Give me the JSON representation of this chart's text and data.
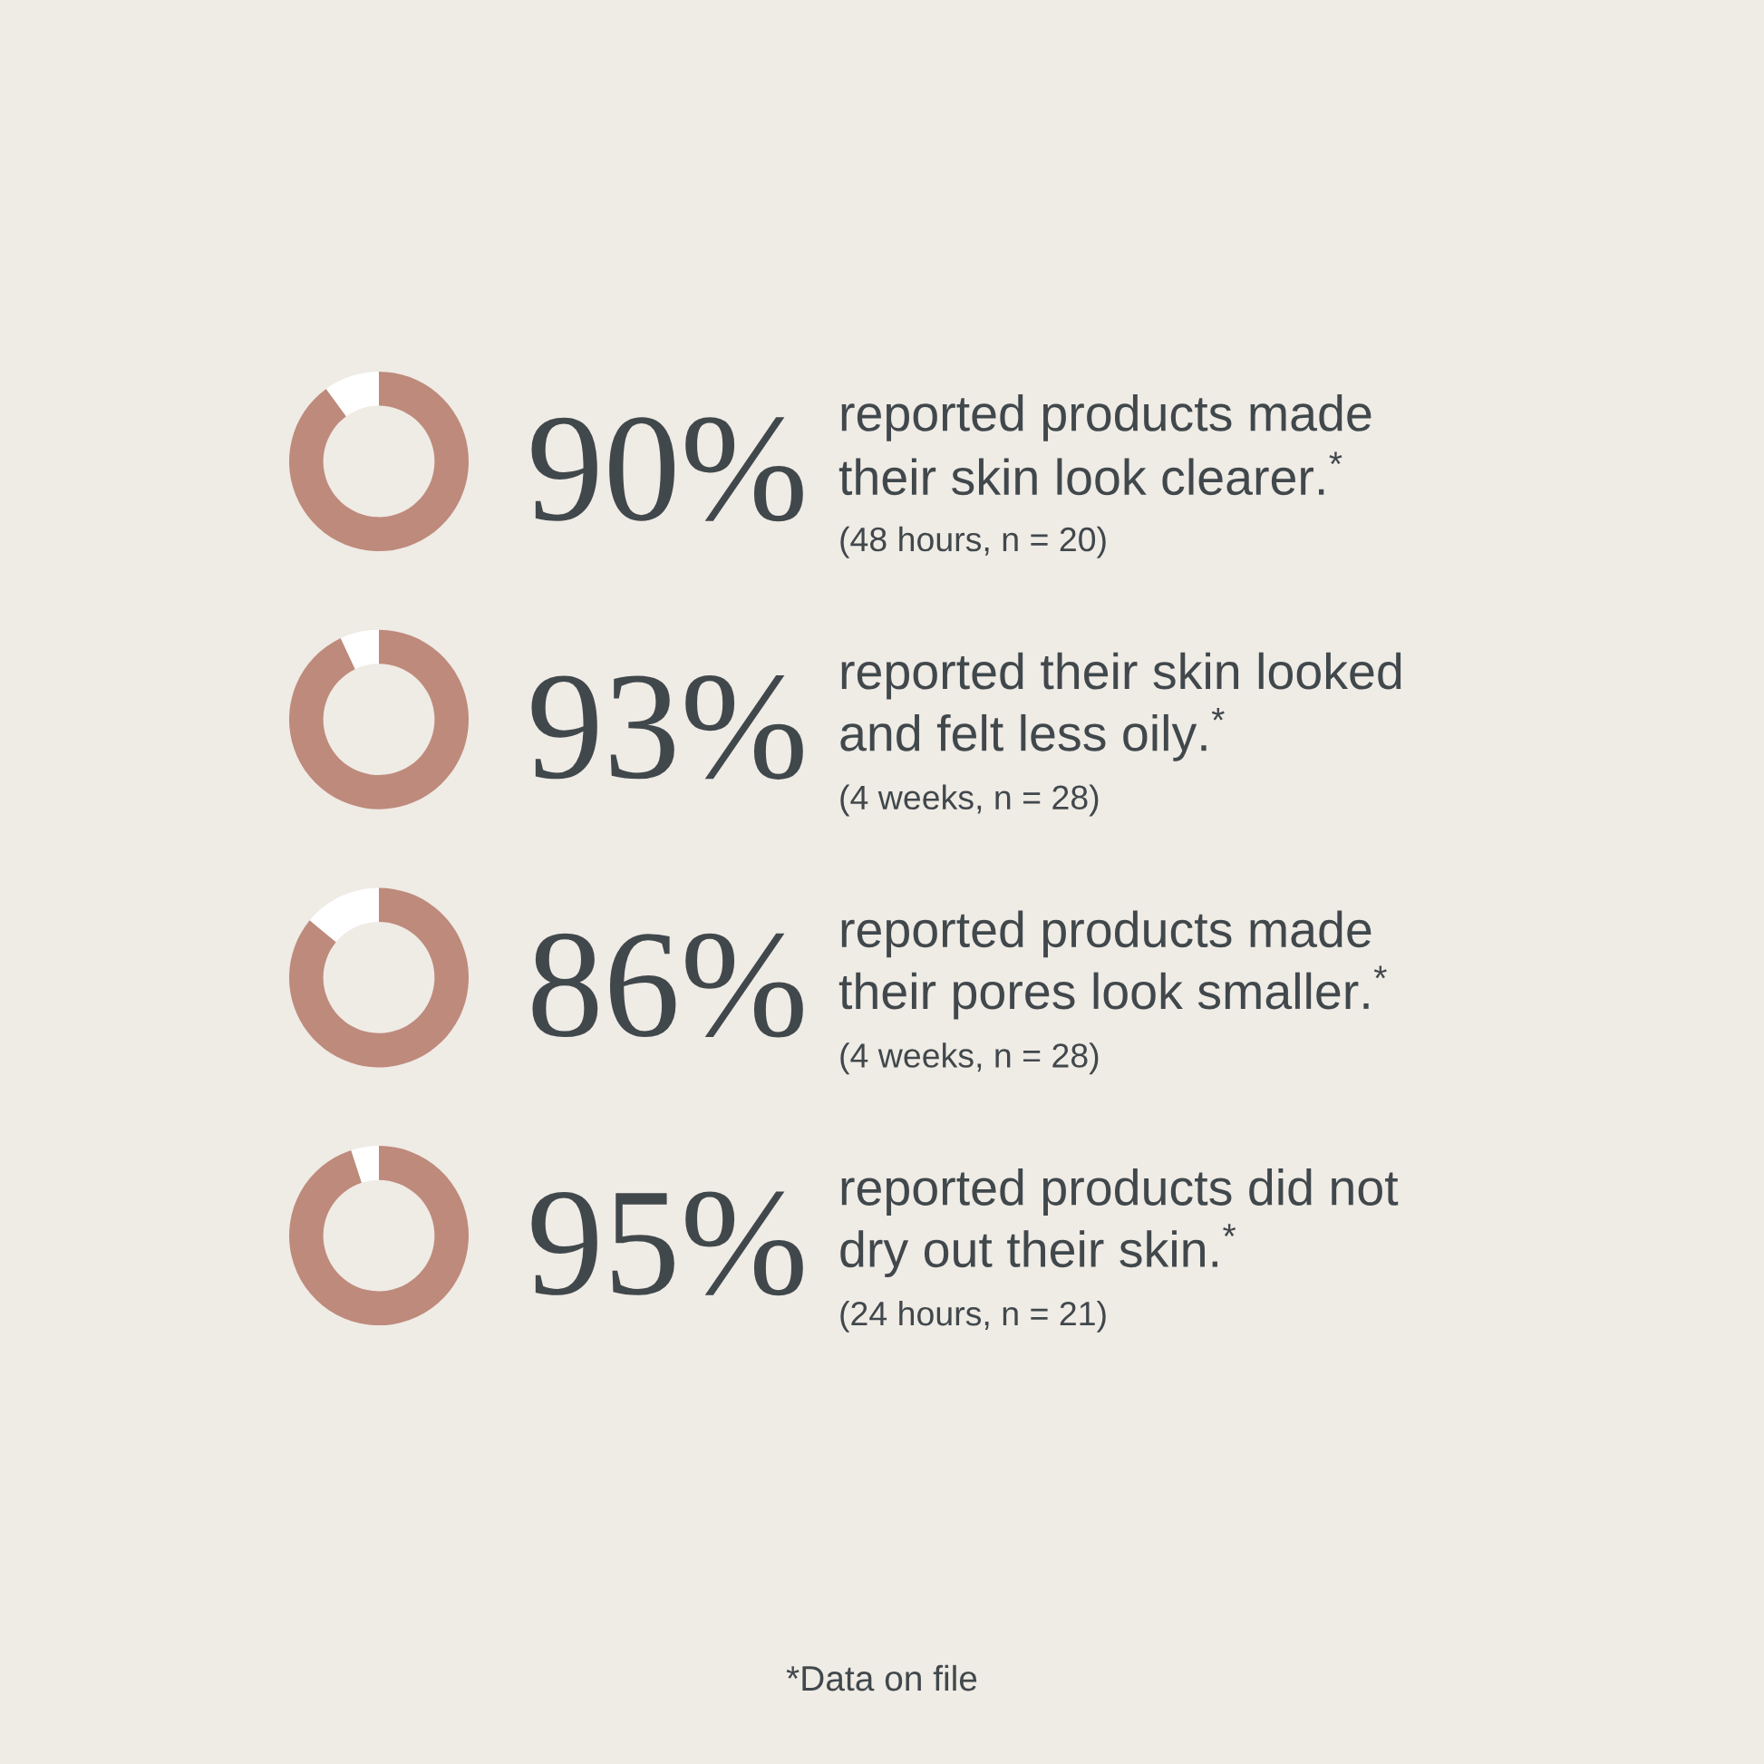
{
  "chart_data": [
    {
      "type": "donut",
      "title": "reported products made\ntheir skin look clearer.$^{*}$",
      "subtitle": "(48 hours, n = 20)",
      "categories": [
        null,
        null
      ],
      "values": [
        90,
        10
      ],
      "colors": [
        "#be8a7c",
        "#ffffff"
      ],
      "value_labels": [
        "90%",
        null
      ]
    },
    {
      "type": "donut",
      "title": "reported their skin looked\nand felt less oily.$^{*}$",
      "subtitle": "(4 weeks, n = 28)",
      "categories": [
        null,
        null
      ],
      "values": [
        93,
        7
      ],
      "colors": [
        "#be8a7c",
        "#ffffff"
      ],
      "value_labels": [
        "93%",
        null
      ]
    },
    {
      "type": "donut",
      "title": "reported products made\ntheir pores look smaller.$^{*}$",
      "subtitle": "(4 weeks, n = 28)",
      "categories": [
        null,
        null
      ],
      "values": [
        86,
        14
      ],
      "colors": [
        "#be8a7c",
        "#ffffff"
      ],
      "value_labels": [
        "86%",
        null
      ]
    },
    {
      "type": "donut",
      "title": "reported products did not\ndry out their skin.$^{*}$",
      "subtitle": "(24 hours, n = 21)",
      "categories": [
        null,
        null
      ],
      "values": [
        95,
        5
      ],
      "colors": [
        "#be8a7c",
        "#ffffff"
      ],
      "value_labels": [
        "95%",
        null
      ],
      "annotations": [
        "*Data on file"
      ]
    }
  ]
}
